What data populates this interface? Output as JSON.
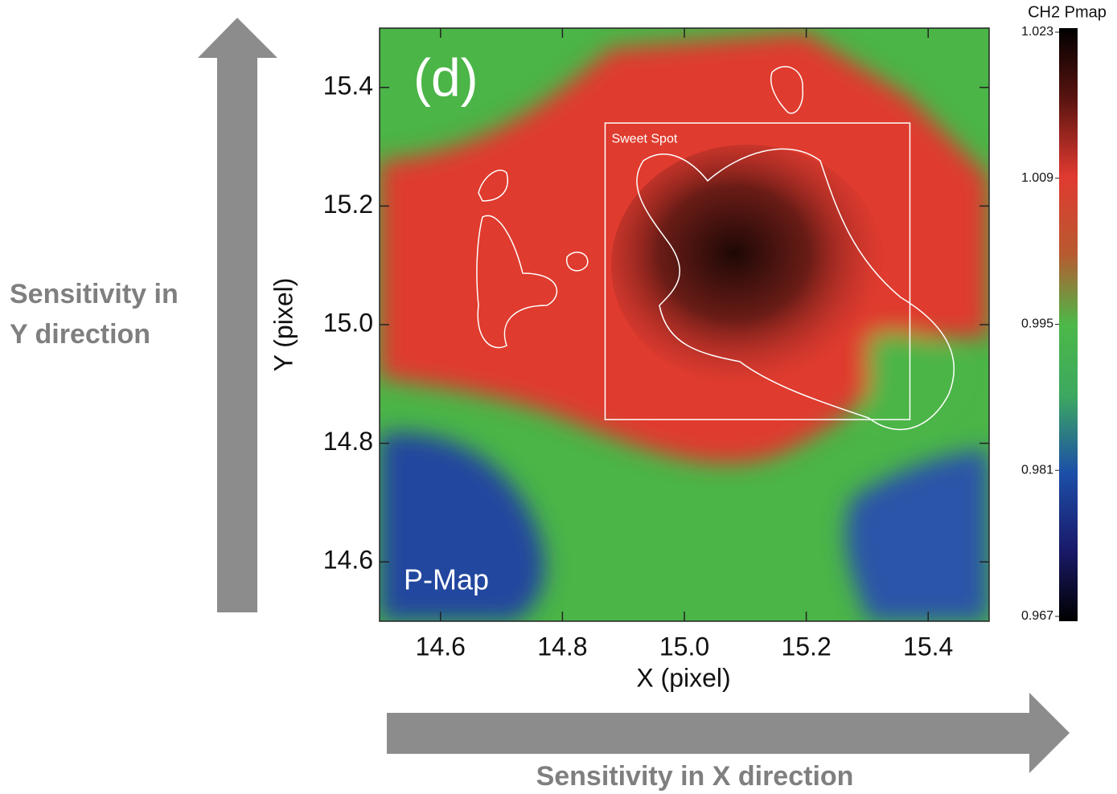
{
  "chart_data": {
    "type": "heatmap",
    "xlabel": "X (pixel)",
    "ylabel": "Y (pixel)",
    "xlim": [
      14.5,
      15.5
    ],
    "ylim": [
      14.5,
      15.5
    ],
    "xticks": [
      14.6,
      14.8,
      {
        "value": 15,
        "label": "15.0"
      },
      15.2,
      15.4
    ],
    "yticks": [
      14.6,
      14.8,
      {
        "value": 15,
        "label": "15.0"
      },
      15.2,
      15.4
    ],
    "colorbar": {
      "title": "CH2 Pmap",
      "lim": [
        0.967,
        1.023
      ],
      "ticks": [
        0.967,
        0.981,
        0.995,
        1.009,
        1.023
      ]
    },
    "panel_label": "(d)",
    "map_label": "P-Map",
    "sweet_spot": {
      "label": "Sweet Spot",
      "x": [
        14.87,
        15.37
      ],
      "y": [
        14.84,
        15.34
      ]
    },
    "y_arrow_label": [
      "Sensitivity in",
      "Y direction"
    ],
    "x_arrow_label": "Sensitivity in X direction"
  }
}
